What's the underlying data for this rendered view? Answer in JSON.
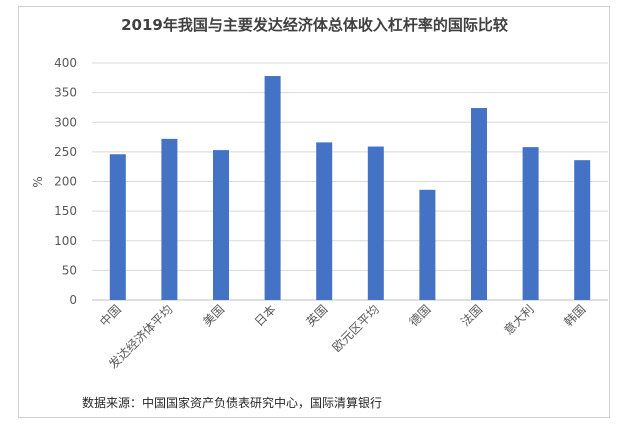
{
  "chart_data": {
    "type": "bar",
    "title": "2019年我国与主要发达经济体总体收入杠杆率的国际比较",
    "ylabel": "%",
    "ylim": [
      0,
      400
    ],
    "yticks": [
      0,
      50,
      100,
      150,
      200,
      250,
      300,
      350,
      400
    ],
    "grid": true,
    "categories": [
      "中国",
      "发达经济体平均",
      "美国",
      "日本",
      "英国",
      "欧元区平均",
      "德国",
      "法国",
      "意大利",
      "韩国"
    ],
    "values": [
      246,
      272,
      253,
      378,
      266,
      259,
      186,
      324,
      258,
      236
    ],
    "bar_color": "#4472C4",
    "source": "数据来源：中国国家资产负债表研究中心，国际清算银行"
  }
}
